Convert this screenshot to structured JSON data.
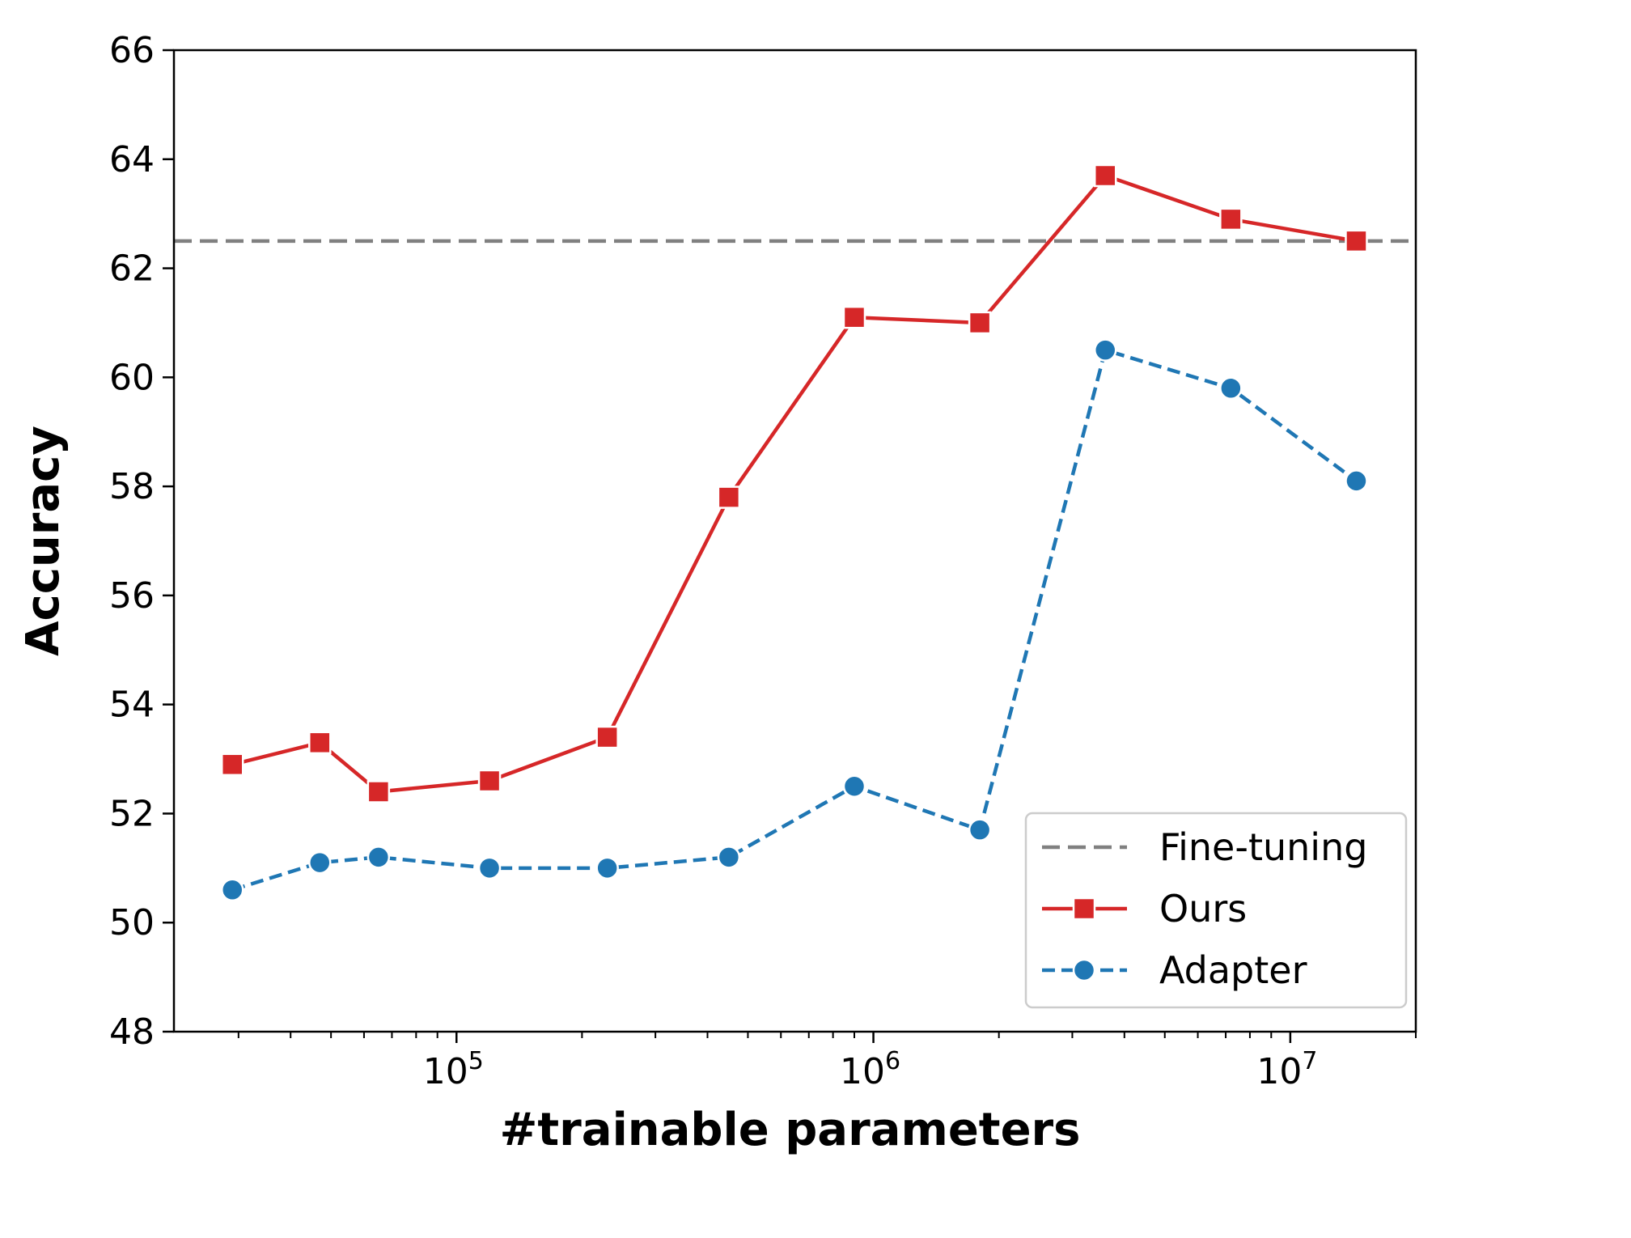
{
  "chart_data": {
    "type": "line",
    "xlabel": "#trainable parameters",
    "ylabel": "Accuracy",
    "xscale": "log",
    "xlim": [
      21000,
      20000000
    ],
    "ylim": [
      48,
      66
    ],
    "yticks": [
      48,
      50,
      52,
      54,
      56,
      58,
      60,
      62,
      64,
      66
    ],
    "xticks_major": [
      {
        "value": 100000,
        "base": "10",
        "exp": "5"
      },
      {
        "value": 1000000,
        "base": "10",
        "exp": "6"
      },
      {
        "value": 10000000,
        "base": "10",
        "exp": "7"
      }
    ],
    "grid": false,
    "legend_position": "lower-right",
    "reference_line": {
      "name": "Fine-tuning",
      "y": 62.5,
      "color": "#808080",
      "style": "dashed"
    },
    "series": [
      {
        "name": "Ours",
        "color": "#d62728",
        "marker": "square",
        "line_style": "solid",
        "x": [
          29000,
          47000,
          65000,
          120000,
          230000,
          450000,
          900000,
          1800000,
          3600000,
          7200000,
          14400000
        ],
        "y": [
          52.9,
          53.3,
          52.4,
          52.6,
          53.4,
          57.8,
          61.1,
          61.0,
          63.7,
          62.9,
          62.5
        ]
      },
      {
        "name": "Adapter",
        "color": "#1f77b4",
        "marker": "circle",
        "line_style": "dashed",
        "x": [
          29000,
          47000,
          65000,
          120000,
          230000,
          450000,
          900000,
          1800000,
          3600000,
          7200000,
          14400000
        ],
        "y": [
          50.6,
          51.1,
          51.2,
          51.0,
          51.0,
          51.2,
          52.5,
          51.7,
          60.5,
          59.8,
          58.1
        ]
      }
    ]
  }
}
